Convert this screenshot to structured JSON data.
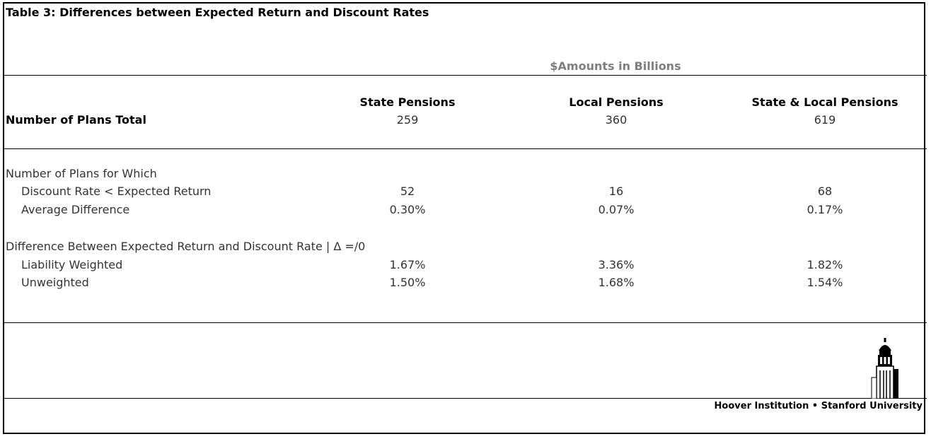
{
  "title": "Table 3:  Differences between Expected Return and Discount Rates",
  "subtitle": "$Amounts in Billions",
  "columns": [
    "State Pensions",
    "Local Pensions",
    "State & Local Pensions"
  ],
  "rows": {
    "plans_total": {
      "label": "Number of Plans Total",
      "values": [
        "259",
        "360",
        "619"
      ]
    },
    "section1_heading": "Number of Plans for Which",
    "discount_lt_expected": {
      "label": "Discount Rate < Expected Return",
      "values": [
        "52",
        "16",
        "68"
      ]
    },
    "average_difference": {
      "label": "Average Difference",
      "values": [
        "0.30%",
        "0.07%",
        "0.17%"
      ]
    },
    "section2_heading": "Difference Between Expected Return and Discount Rate | Δ =/0",
    "liability_weighted": {
      "label": "Liability Weighted",
      "values": [
        "1.67%",
        "3.36%",
        "1.82%"
      ]
    },
    "unweighted": {
      "label": "Unweighted",
      "values": [
        "1.50%",
        "1.68%",
        "1.54%"
      ]
    }
  },
  "footer": "Hoover Institution • Stanford University",
  "logo_icon": "hoover-tower-icon"
}
